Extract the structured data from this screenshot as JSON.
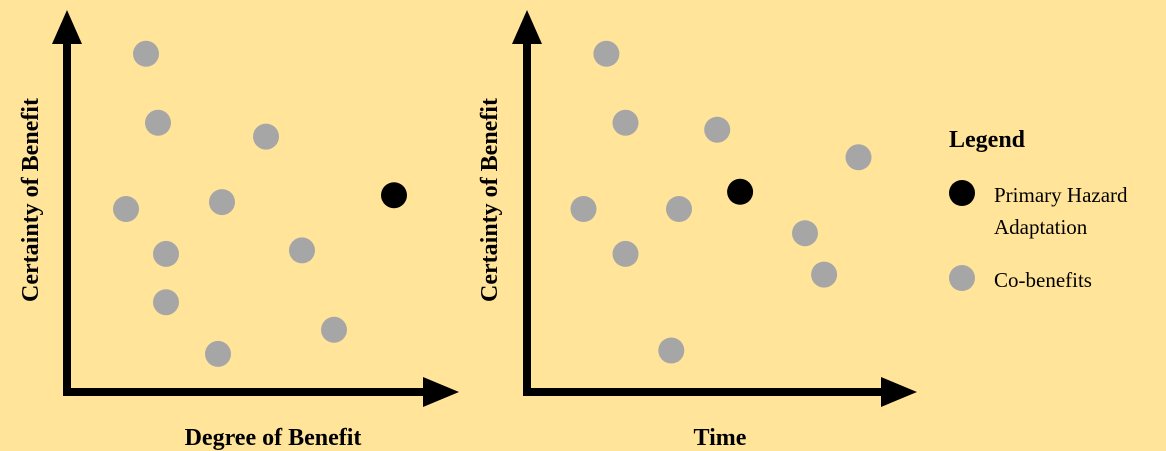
{
  "colors": {
    "background": "#ffe499",
    "axis": "#000000",
    "primary": "#000000",
    "cobenefit": "#a6a6a6"
  },
  "chart_data": [
    {
      "type": "scatter",
      "xlabel": "Degree of Benefit",
      "ylabel": "Certainty of Benefit",
      "series": [
        {
          "name": "Primary Hazard Adaptation",
          "points": [
            [
              81,
              55
            ]
          ]
        },
        {
          "name": "Co-benefits",
          "points": [
            [
              19,
              96
            ],
            [
              22,
              76
            ],
            [
              49,
              72
            ],
            [
              14,
              51
            ],
            [
              38,
              53
            ],
            [
              24,
              38
            ],
            [
              58,
              39
            ],
            [
              24,
              24
            ],
            [
              66,
              16
            ],
            [
              37,
              9
            ]
          ]
        }
      ]
    },
    {
      "type": "scatter",
      "xlabel": "Time",
      "ylabel": "Certainty of Benefit",
      "series": [
        {
          "name": "Primary Hazard Adaptation",
          "points": [
            [
              55,
              56
            ]
          ]
        },
        {
          "name": "Co-benefits",
          "points": [
            [
              20,
              96
            ],
            [
              25,
              76
            ],
            [
              49,
              74
            ],
            [
              14,
              51
            ],
            [
              39,
              51
            ],
            [
              86,
              66
            ],
            [
              72,
              44
            ],
            [
              77,
              32
            ],
            [
              25,
              38
            ],
            [
              37,
              10
            ]
          ]
        }
      ]
    }
  ],
  "legend": {
    "title": "Legend",
    "items": [
      {
        "lines": [
          "Primary Hazard",
          "Adaptation"
        ],
        "color": "#000000"
      },
      {
        "lines": [
          "Co-benefits"
        ],
        "color": "#a6a6a6"
      }
    ]
  }
}
